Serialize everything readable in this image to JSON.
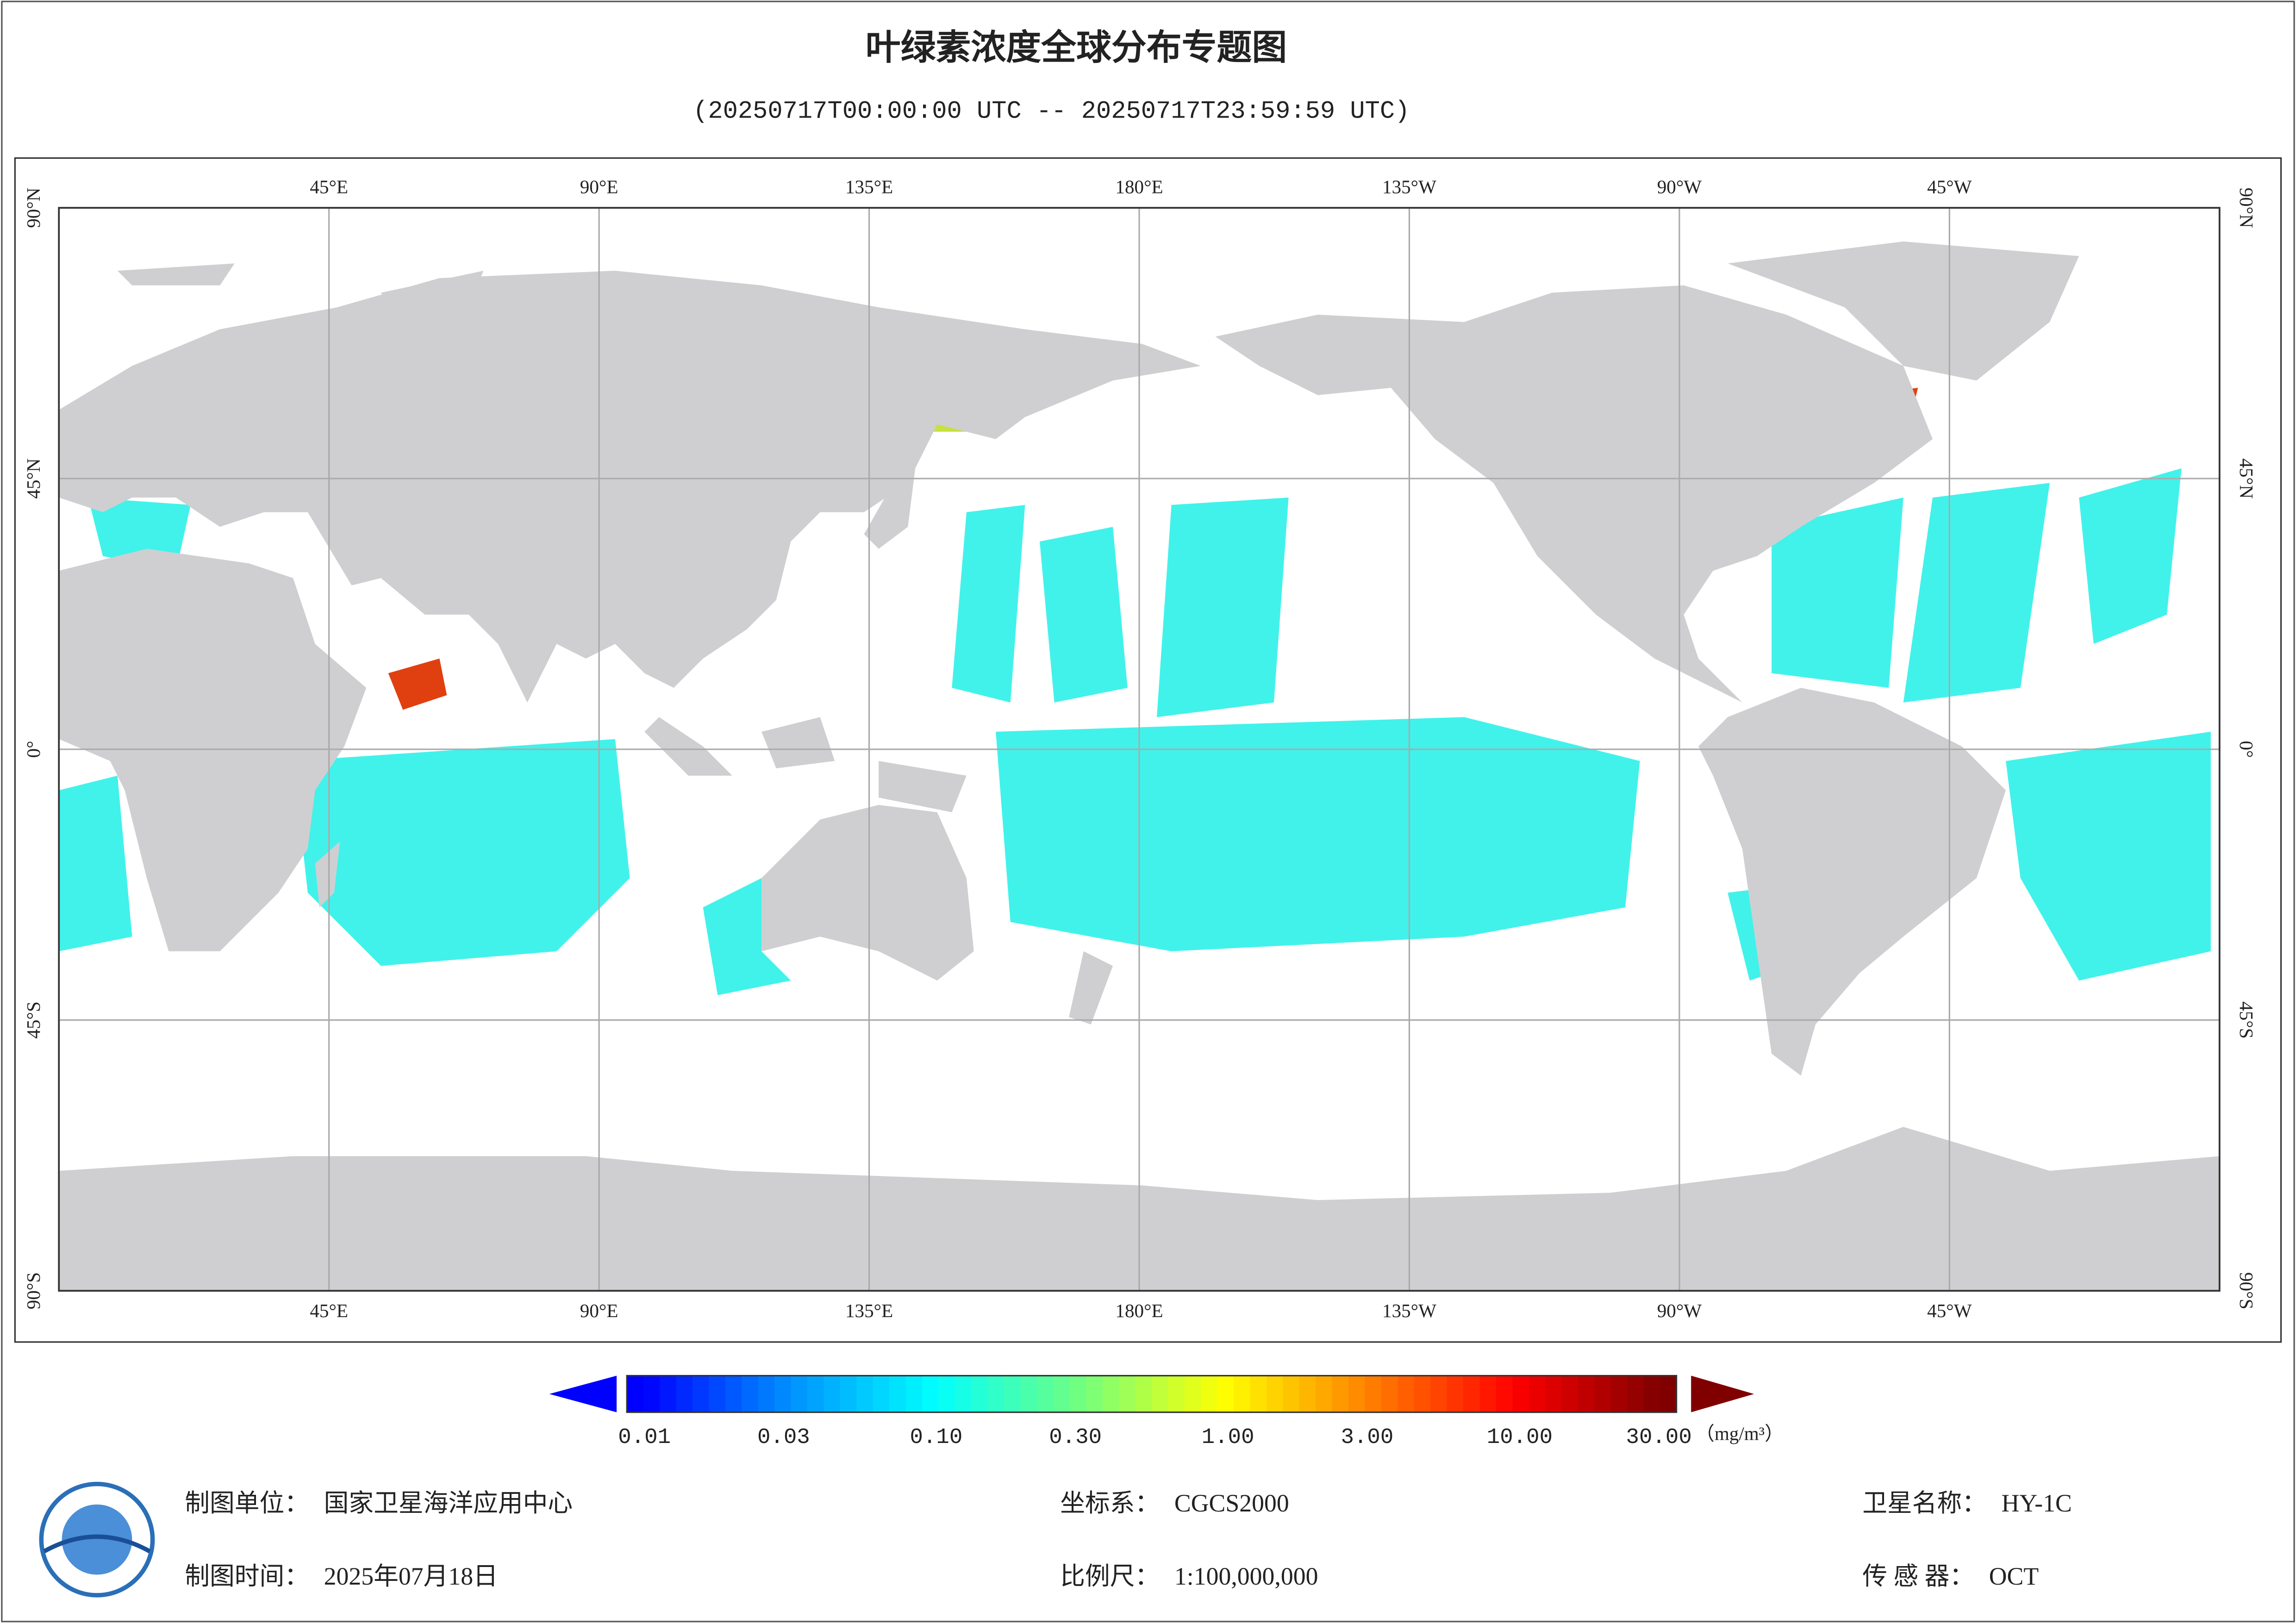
{
  "map": {
    "title": "叶绿素浓度全球分布专题图",
    "subtitle": "(20250717T00:00:00 UTC -- 20250717T23:59:59 UTC)",
    "xlim": [
      0,
      360
    ],
    "ylim": [
      -90,
      90
    ],
    "xticks": [
      {
        "value": 45,
        "label": "45°E"
      },
      {
        "value": 90,
        "label": "90°E"
      },
      {
        "value": 135,
        "label": "135°E"
      },
      {
        "value": 180,
        "label": "180°E"
      },
      {
        "value": -135,
        "label": "135°W"
      },
      {
        "value": -90,
        "label": "90°W"
      },
      {
        "value": -45,
        "label": "45°W"
      }
    ],
    "yticks": [
      {
        "value": 90,
        "label": "90°N"
      },
      {
        "value": 45,
        "label": "45°N"
      },
      {
        "value": 0,
        "label": "0°"
      },
      {
        "value": -45,
        "label": "45°S"
      },
      {
        "value": -90,
        "label": "90°S"
      }
    ],
    "grid": true
  },
  "colorbar": {
    "scale": "log",
    "lim": [
      0.01,
      30
    ],
    "ticks": [
      0.01,
      0.03,
      {
        "value": 0.1,
        "label": "0.10"
      },
      {
        "value": 0.3,
        "label": "0.30"
      },
      {
        "value": 1,
        "label": "1.00"
      },
      {
        "value": 3,
        "label": "3.00"
      },
      {
        "value": 10,
        "label": "10.00"
      },
      {
        "value": 30,
        "label": "30.00"
      }
    ],
    "unit": "（mg/m³）",
    "colors": [
      "#0000ff",
      "#0090ff",
      "#00ffff",
      "#70ff80",
      "#ffff00",
      "#ff8000",
      "#ff0000",
      "#800000"
    ]
  },
  "footer": [
    {
      "label": "制图单位：",
      "value": "国家卫星海洋应用中心"
    },
    {
      "label": "坐标系：",
      "value": "CGCS2000"
    },
    {
      "label": "卫星名称：",
      "value": "HY-1C"
    },
    {
      "label": "制图时间：",
      "value": "2025年07月18日"
    },
    {
      "label": "比例尺：",
      "value": "1:100,000,000"
    },
    {
      "label": "传 感 器：",
      "value": "OCT"
    }
  ]
}
